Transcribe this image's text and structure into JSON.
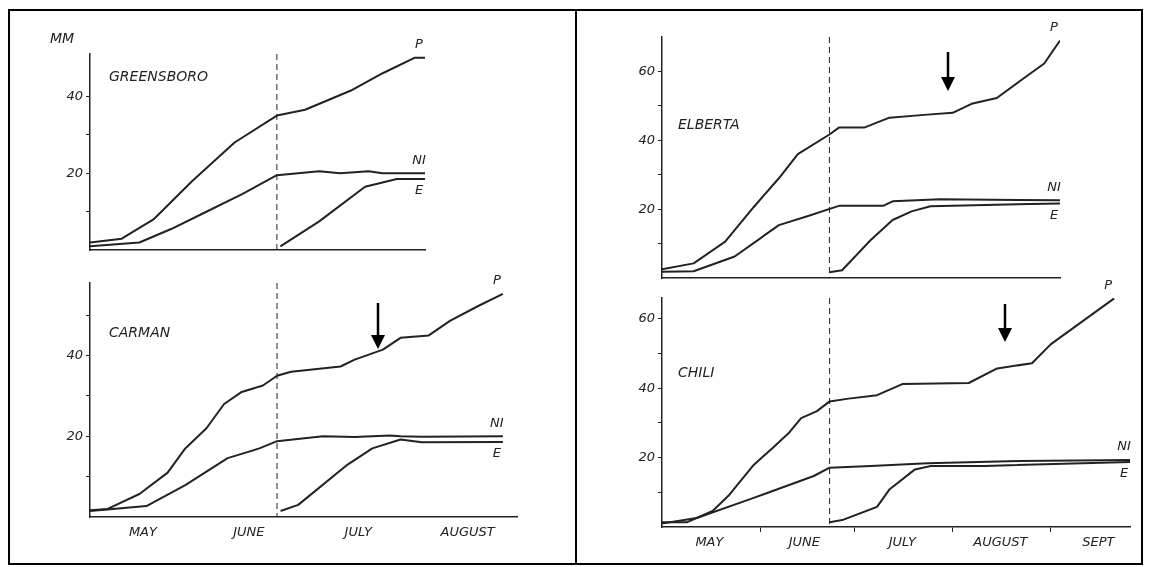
{
  "chart_data": [
    {
      "type": "line",
      "title": "GREENSBORO",
      "ylabel": "MM",
      "legend": false,
      "tick_labels": "y",
      "xlim": [
        "--05-01",
        "--08-04"
      ],
      "ylim": [
        0,
        51
      ],
      "yticks": [
        {
          "value": 10,
          "label": null
        },
        20,
        {
          "value": 30,
          "label": null
        },
        40
      ],
      "xticks": [
        {
          "value": "--05-16",
          "label": "MAY"
        },
        {
          "value": "--06-15",
          "label": "JUNE"
        },
        {
          "value": "--07-16",
          "label": "JULY"
        }
      ],
      "ref_lines": [
        {
          "axis": "x",
          "value": "--06-23",
          "line_style": "dashed"
        }
      ],
      "series": [
        {
          "name": "P",
          "color": "#222222",
          "x": [
            "--05-01",
            "--05-10",
            "--05-19",
            "--05-30",
            "--06-11",
            "--06-23",
            "--07-01",
            "--07-14",
            "--07-23",
            "--08-01",
            "--08-04"
          ],
          "values": [
            2,
            3,
            8,
            18,
            28,
            35,
            36.5,
            41.5,
            46,
            50,
            50
          ]
        },
        {
          "name": "NI",
          "color": "#222222",
          "x": [
            "--05-01",
            "--05-15",
            "--05-24",
            "--06-03",
            "--06-13",
            "--06-23",
            "--07-05",
            "--07-11",
            "--07-19",
            "--07-23",
            "--08-04"
          ],
          "values": [
            1,
            2,
            5.5,
            10,
            14.5,
            19.5,
            20.5,
            20,
            20.5,
            20,
            20
          ]
        },
        {
          "name": "E",
          "color": "#222222",
          "x": [
            "--06-24",
            "--07-05",
            "--07-18",
            "--07-27",
            "--08-04"
          ],
          "values": [
            1,
            7.5,
            16.5,
            18.5,
            18.5
          ]
        }
      ]
    },
    {
      "type": "line",
      "title": "ELBERTA",
      "legend": false,
      "tick_labels": "y",
      "xlim": [
        "--05-01",
        "--09-04"
      ],
      "ylim": [
        0,
        70
      ],
      "yticks": [
        {
          "value": 10,
          "label": null
        },
        20,
        {
          "value": 30,
          "label": null
        },
        40,
        {
          "value": 50,
          "label": null
        },
        60
      ],
      "xticks": [
        {
          "value": "--05-16",
          "label": "MAY"
        },
        {
          "value": "--06-15",
          "label": "JUNE"
        },
        {
          "value": "--07-16",
          "label": "JULY"
        },
        {
          "value": "--08-16",
          "label": "AUGUST"
        }
      ],
      "ref_lines": [
        {
          "axis": "x",
          "value": "--06-23",
          "line_style": "dashed"
        }
      ],
      "series": [
        {
          "name": "P",
          "color": "#222222",
          "x": [
            "--05-01",
            "--05-11",
            "--05-21",
            "--05-30",
            "--06-07",
            "--06-13",
            "--06-23",
            "--06-26",
            "--07-04",
            "--07-12",
            "--07-23",
            "--08-01",
            "--08-07",
            "--08-15",
            "--08-22",
            "--08-30",
            "--09-04"
          ],
          "values": [
            2.6,
            4.3,
            10.6,
            20.6,
            29,
            36,
            41.7,
            43.7,
            43.7,
            46.6,
            47.4,
            48,
            50.6,
            52.3,
            57,
            62.3,
            69
          ]
        },
        {
          "name": "NI",
          "color": "#222222",
          "x": [
            "--05-01",
            "--05-11",
            "--05-24",
            "--06-07",
            "--06-16",
            "--06-26",
            "--07-10",
            "--07-13",
            "--07-28",
            "--09-04"
          ],
          "values": [
            1.9,
            2,
            6.3,
            15.4,
            18,
            21,
            21,
            22.3,
            22.9,
            22.6
          ]
        },
        {
          "name": "E",
          "color": "#222222",
          "x": [
            "--06-23",
            "--06-27",
            "--07-06",
            "--07-13",
            "--07-19",
            "--07-25",
            "--09-04"
          ],
          "values": [
            1.7,
            2.3,
            11,
            16.9,
            19.4,
            20.9,
            21.7
          ]
        }
      ]
    },
    {
      "type": "line",
      "title": "CARMAN",
      "legend": false,
      "xlim": [
        "--05-01",
        "--08-30"
      ],
      "ylim": [
        0,
        58
      ],
      "yticks": [
        {
          "value": 10,
          "label": null
        },
        20,
        {
          "value": 30,
          "label": null
        },
        40,
        {
          "value": 50,
          "label": null
        }
      ],
      "xticks": [
        {
          "value": "--05-16",
          "label": "MAY"
        },
        {
          "value": "--06-15",
          "label": "JUNE"
        },
        {
          "value": "--07-16",
          "label": "JULY"
        },
        {
          "value": "--08-16",
          "label": "AUGUST"
        }
      ],
      "ref_lines": [
        {
          "axis": "x",
          "value": "--06-23",
          "line_style": "dashed"
        }
      ],
      "series": [
        {
          "name": "P",
          "color": "#222222",
          "x": [
            "--05-01",
            "--05-06",
            "--05-15",
            "--05-23",
            "--05-28",
            "--06-03",
            "--06-08",
            "--06-13",
            "--06-19",
            "--06-23",
            "--06-27",
            "--07-11",
            "--07-15",
            "--07-23",
            "--07-28",
            "--08-05",
            "--08-11",
            "--08-19",
            "--08-26"
          ],
          "values": [
            1.7,
            2,
            5.7,
            11,
            17,
            22,
            28,
            31,
            32.6,
            35,
            36,
            37.3,
            39,
            41.5,
            44.4,
            45,
            48.6,
            52.3,
            55.3
          ]
        },
        {
          "name": "NI",
          "color": "#222222",
          "x": [
            "--05-01",
            "--05-17",
            "--05-28",
            "--06-09",
            "--06-18",
            "--06-23",
            "--07-06",
            "--07-15",
            "--07-25",
            "--07-28",
            "--08-03",
            "--08-26"
          ],
          "values": [
            1.5,
            2.7,
            7.9,
            14.6,
            17,
            18.8,
            20,
            19.8,
            20.2,
            20,
            19.9,
            20
          ]
        },
        {
          "name": "E",
          "color": "#222222",
          "x": [
            "--06-24",
            "--06-29",
            "--07-13",
            "--07-20",
            "--07-28",
            "--08-03",
            "--08-26"
          ],
          "values": [
            1.5,
            3,
            13,
            17,
            19.2,
            18.5,
            18.6
          ]
        }
      ]
    },
    {
      "type": "line",
      "title": "CHILI",
      "legend": false,
      "xlim": [
        "--05-01",
        "--09-26"
      ],
      "ylim": [
        0,
        66
      ],
      "yticks": [
        {
          "value": 10,
          "label": null
        },
        20,
        {
          "value": 30,
          "label": null
        },
        40,
        {
          "value": 50,
          "label": null
        },
        60
      ],
      "xticks": [
        {
          "value": "--05-16",
          "label": "MAY"
        },
        {
          "value": "--06-01",
          "label": null
        },
        {
          "value": "--06-15",
          "label": "JUNE"
        },
        {
          "value": "--07-01",
          "label": null
        },
        {
          "value": "--07-16",
          "label": "JULY"
        },
        {
          "value": "--08-01",
          "label": null
        },
        {
          "value": "--08-16",
          "label": "AUGUST"
        },
        {
          "value": "--09-01",
          "label": null
        },
        {
          "value": "--09-16",
          "label": "SEPT"
        }
      ],
      "ref_lines": [
        {
          "axis": "x",
          "value": "--06-23",
          "line_style": "dashed"
        }
      ],
      "series": [
        {
          "name": "P",
          "color": "#222222",
          "x": [
            "--05-01",
            "--05-09",
            "--05-17",
            "--05-22",
            "--05-30",
            "--06-05",
            "--06-10",
            "--06-14",
            "--06-19",
            "--06-23",
            "--06-29",
            "--07-08",
            "--07-16",
            "--08-06",
            "--08-15",
            "--08-26",
            "--09-01",
            "--09-21"
          ],
          "values": [
            1.4,
            1.4,
            4.6,
            9,
            17.9,
            22.8,
            27,
            31.4,
            33.4,
            36.2,
            37,
            38,
            41.2,
            41.5,
            45.7,
            47.2,
            52.7,
            65.9
          ]
        },
        {
          "name": "NI",
          "color": "#222222",
          "x": [
            "--05-01",
            "--05-12",
            "--05-30",
            "--06-18",
            "--06-23",
            "--07-06",
            "--07-24",
            "--08-22",
            "--09-26"
          ],
          "values": [
            1,
            2.6,
            8.4,
            14.7,
            17.1,
            17.6,
            18.4,
            19,
            19.3
          ]
        },
        {
          "name": "E",
          "color": "#222222",
          "x": [
            "--06-23",
            "--06-27",
            "--07-08",
            "--07-12",
            "--07-20",
            "--07-25",
            "--08-11",
            "--09-26"
          ],
          "values": [
            1.4,
            2,
            5.8,
            10.9,
            16.6,
            17.6,
            17.6,
            18.7
          ]
        }
      ]
    }
  ]
}
